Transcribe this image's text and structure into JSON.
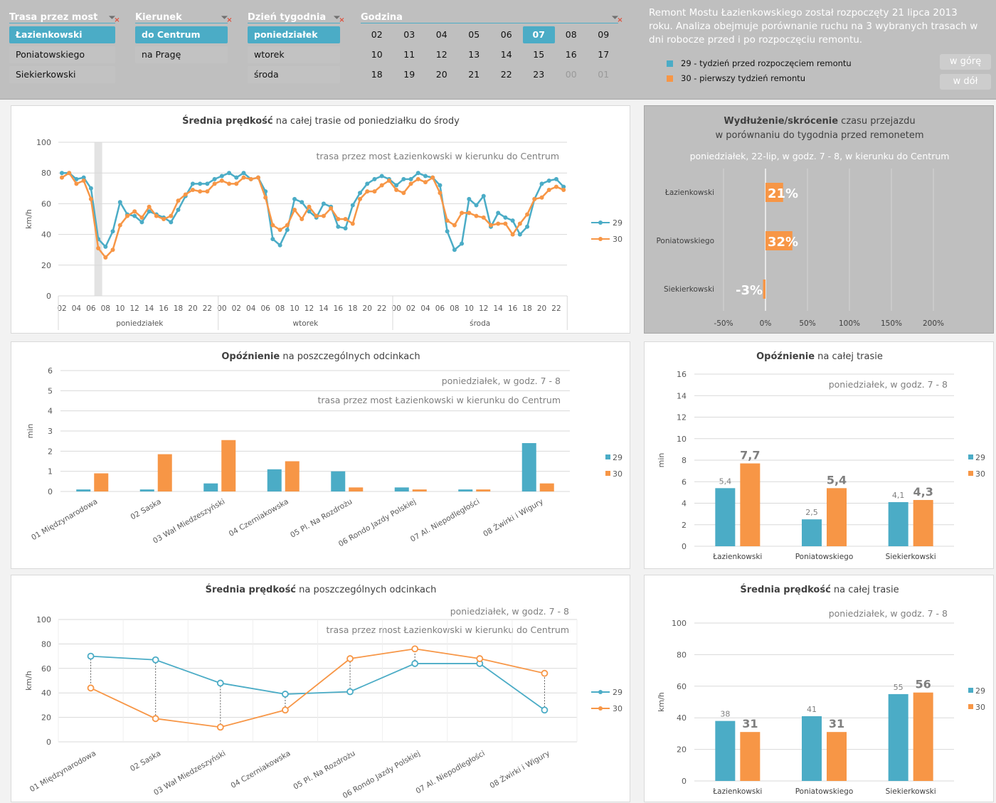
{
  "colors": {
    "week29": "#4bacc6",
    "week30": "#f79646",
    "header_bg": "#bfbfbf"
  },
  "slicers": {
    "route": {
      "title": "Trasa przez most",
      "items": [
        {
          "label": "Łazienkowski",
          "selected": true
        },
        {
          "label": "Poniatowskiego",
          "selected": false
        },
        {
          "label": "Siekierkowski",
          "selected": false
        }
      ]
    },
    "direction": {
      "title": "Kierunek",
      "items": [
        {
          "label": "do Centrum",
          "selected": true
        },
        {
          "label": "na Pragę",
          "selected": false
        }
      ]
    },
    "day": {
      "title": "Dzień tygodnia",
      "items": [
        {
          "label": "poniedziałek",
          "selected": true
        },
        {
          "label": "wtorek",
          "selected": false
        },
        {
          "label": "środa",
          "selected": false
        }
      ]
    },
    "hour": {
      "title": "Godzina",
      "items": [
        "02",
        "03",
        "04",
        "05",
        "06",
        "07",
        "08",
        "09",
        "10",
        "11",
        "12",
        "13",
        "14",
        "15",
        "16",
        "17",
        "18",
        "19",
        "20",
        "21",
        "22",
        "23",
        "00",
        "01"
      ],
      "selected": "07",
      "disabled": [
        "00",
        "01"
      ]
    }
  },
  "info": {
    "text": "Remont Mostu Łazienkowskiego został rozpoczęty 21 lipca 2013 roku. Analiza obejmuje porównanie ruchu na 3 wybranych trasach w dni robocze przed i po rozpoczęciu remontu.",
    "legend": [
      "29 - tydzień przed rozpoczęciem remontu",
      "30 - pierwszy tydzień remontu"
    ],
    "up_button": "w górę",
    "down_button": "w dół"
  },
  "chart_data": [
    {
      "type": "line",
      "title_bold": "Średnia prędkość",
      "title_rest": " na całej trasie od poniedziałku do środy",
      "subtitle": "trasa przez most Łazienkowski w kierunku do Centrum",
      "ylabel": "km/h",
      "ylim": [
        0,
        100
      ],
      "yticks": [
        0,
        20,
        40,
        60,
        80,
        100
      ],
      "highlight": {
        "day": "poniedziałek",
        "hour": "07"
      },
      "days": [
        {
          "label": "poniedziałek",
          "hours": [
            "02",
            "03",
            "04",
            "05",
            "06",
            "07",
            "08",
            "09",
            "10",
            "11",
            "12",
            "13",
            "14",
            "15",
            "16",
            "17",
            "18",
            "19",
            "20",
            "21",
            "22",
            "23"
          ]
        },
        {
          "label": "wtorek",
          "hours": [
            "00",
            "01",
            "02",
            "03",
            "04",
            "05",
            "06",
            "07",
            "08",
            "09",
            "10",
            "11",
            "12",
            "13",
            "14",
            "15",
            "16",
            "17",
            "18",
            "19",
            "20",
            "21",
            "22",
            "23"
          ]
        },
        {
          "label": "środa",
          "hours": [
            "00",
            "01",
            "02",
            "03",
            "04",
            "05",
            "06",
            "07",
            "08",
            "09",
            "10",
            "11",
            "12",
            "13",
            "14",
            "15",
            "16",
            "17",
            "18",
            "19",
            "20",
            "21",
            "22",
            "23"
          ]
        }
      ],
      "series": [
        {
          "name": "29",
          "values": [
            80,
            80,
            76,
            77,
            70,
            37,
            32,
            42,
            61,
            53,
            52,
            48,
            55,
            53,
            51,
            48,
            56,
            65,
            73,
            73,
            73,
            76,
            78,
            80,
            77,
            80,
            76,
            77,
            68,
            37,
            33,
            43,
            63,
            61,
            55,
            51,
            60,
            58,
            45,
            44,
            59,
            67,
            73,
            76,
            78,
            76,
            72,
            76,
            76,
            80,
            78,
            77,
            72,
            42,
            30,
            34,
            63,
            59,
            65,
            45,
            54,
            51,
            49,
            40,
            45,
            63,
            73,
            75,
            76,
            71
          ]
        },
        {
          "name": "30",
          "values": [
            77,
            80,
            73,
            75,
            63,
            31,
            25,
            30,
            46,
            52,
            55,
            51,
            58,
            52,
            50,
            52,
            62,
            66,
            69,
            68,
            68,
            73,
            75,
            73,
            73,
            77,
            76,
            77,
            64,
            46,
            43,
            46,
            56,
            50,
            58,
            52,
            52,
            57,
            50,
            50,
            47,
            63,
            68,
            68,
            72,
            75,
            69,
            67,
            73,
            76,
            74,
            77,
            67,
            49,
            46,
            54,
            54,
            52,
            51,
            46,
            47,
            47,
            40,
            47,
            53,
            63,
            64,
            69,
            71,
            69
          ]
        }
      ]
    },
    {
      "type": "bar",
      "orientation": "horizontal",
      "title_bold": "Wydłużenie/skrócenie",
      "title_rest": " czasu przejazdu",
      "title_line2": "w porównaniu do tygodnia przed remonetem",
      "subtitle": "poniedziałek, 22-lip, w godz. 7 - 8, w kierunku do Centrum",
      "categories": [
        "Łazienkowski",
        "Poniatowskiego",
        "Siekierkowski"
      ],
      "values": [
        21,
        32,
        -3
      ],
      "labels": [
        "21%",
        "32%",
        "-3%"
      ],
      "xlim": [
        -50,
        200
      ],
      "xticks": [
        "-50%",
        "0%",
        "50%",
        "100%",
        "150%",
        "200%"
      ]
    },
    {
      "type": "bar",
      "title_bold": "Opóźnienie",
      "title_rest": " na poszczególnych odcinkach",
      "subtitle": "poniedziałek, w godz. 7 - 8",
      "subtitle2": "trasa przez most Łazienkowski w kierunku do Centrum",
      "ylabel": "min",
      "ylim": [
        0,
        6
      ],
      "yticks": [
        0,
        1,
        2,
        3,
        4,
        5,
        6
      ],
      "categories": [
        "01 Międzynarodowa",
        "02 Saska",
        "03 Wał Miedzeszyński",
        "04 Czerniakowska",
        "05 Pl. Na Rozdrożu",
        "06 Rondo Jazdy Polskiej",
        "07 Al. Niepodległości",
        "08 Żwirki i Wigury"
      ],
      "series": [
        {
          "name": "29",
          "values": [
            0.1,
            0.1,
            0.4,
            1.1,
            1.0,
            0.2,
            0.1,
            2.4
          ]
        },
        {
          "name": "30",
          "values": [
            0.9,
            1.85,
            2.55,
            1.5,
            0.2,
            0.1,
            0.1,
            0.4
          ]
        }
      ]
    },
    {
      "type": "bar",
      "title_bold": "Opóźnienie",
      "title_rest": " na całej trasie",
      "subtitle": "poniedziałek, w godz. 7 - 8",
      "ylabel": "min",
      "ylim": [
        0,
        16
      ],
      "yticks": [
        0,
        2,
        4,
        6,
        8,
        10,
        12,
        14,
        16
      ],
      "categories": [
        "Łazienkowski",
        "Poniatowskiego",
        "Siekierkowski"
      ],
      "series": [
        {
          "name": "29",
          "values": [
            5.4,
            2.5,
            4.1
          ],
          "labels": [
            "5,4",
            "2,5",
            "4,1"
          ]
        },
        {
          "name": "30",
          "values": [
            7.7,
            5.4,
            4.3
          ],
          "labels": [
            "7,7",
            "5,4",
            "4,3"
          ]
        }
      ]
    },
    {
      "type": "line",
      "title_bold": "Średnia prędkość",
      "title_rest": " na poszczególnych odcinkach",
      "subtitle": "poniedziałek, w godz. 7 - 8",
      "subtitle2": "trasa przez most Łazienkowski w kierunku do Centrum",
      "ylabel": "km/h",
      "ylim": [
        0,
        100
      ],
      "yticks": [
        0,
        20,
        40,
        60,
        80,
        100
      ],
      "categories": [
        "01 Międzynarodowa",
        "02 Saska",
        "03 Wał Miedzeszyński",
        "04 Czerniakowska",
        "05 Pl. Na Rozdrożu",
        "06 Rondo Jazdy Polskiej",
        "07 Al. Niepodległości",
        "08 Żwirki i Wigury"
      ],
      "series": [
        {
          "name": "29",
          "values": [
            70,
            67,
            48,
            39,
            41,
            64,
            64,
            26
          ]
        },
        {
          "name": "30",
          "values": [
            44,
            19,
            12,
            26,
            68,
            76,
            68,
            56
          ]
        }
      ]
    },
    {
      "type": "bar",
      "title_bold": "Średnia prędkość",
      "title_rest": " na całej trasie",
      "subtitle": "poniedziałek, w godz. 7 - 8",
      "ylabel": "km/h",
      "ylim": [
        0,
        100
      ],
      "yticks": [
        0,
        20,
        40,
        60,
        80,
        100
      ],
      "categories": [
        "Łazienkowski",
        "Poniatowskiego",
        "Siekierkowski"
      ],
      "series": [
        {
          "name": "29",
          "values": [
            38,
            41,
            55
          ],
          "labels": [
            "38",
            "41",
            "55"
          ]
        },
        {
          "name": "30",
          "values": [
            31,
            31,
            56
          ],
          "labels": [
            "31",
            "31",
            "56"
          ]
        }
      ]
    }
  ]
}
